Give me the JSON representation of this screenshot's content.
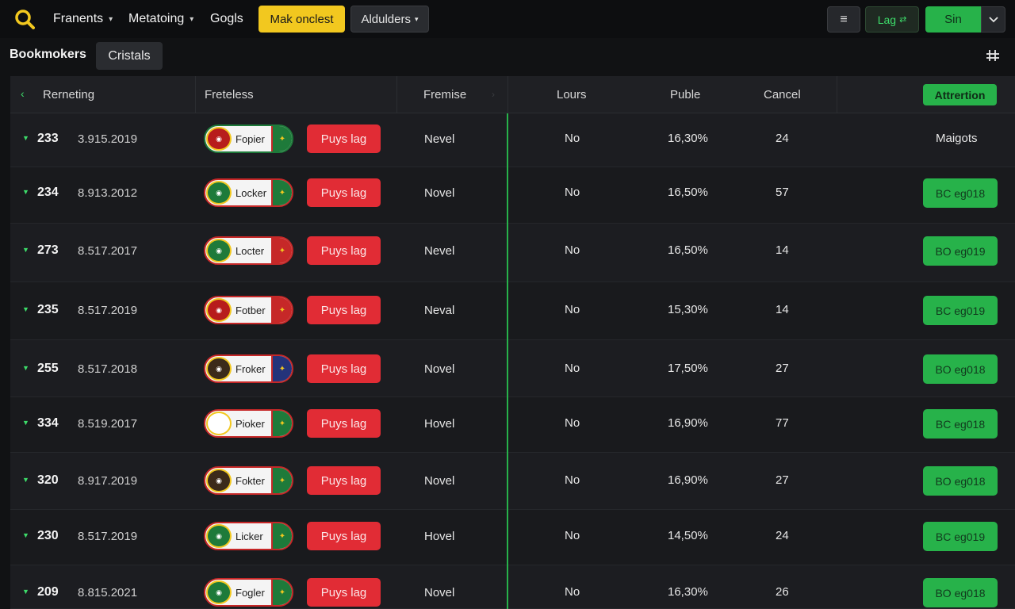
{
  "topbar": {
    "nav": [
      {
        "label": "Franents",
        "has_dropdown": true
      },
      {
        "label": "Metatoing",
        "has_dropdown": true
      },
      {
        "label": "Gogls",
        "has_dropdown": false
      }
    ],
    "yellow_button": "Mak onclest",
    "dark_button": "Aldulders",
    "menu_icon": "≡",
    "log_button": "Lag",
    "sign_button": "Sin"
  },
  "subbar": {
    "active_tab": "Bookmokers",
    "tab": "Cristals"
  },
  "table": {
    "headers": [
      "Rerneting",
      "Freteless",
      "Fremise",
      "Lours",
      "Puble",
      "Cancel"
    ],
    "attention_label": "Attrertion",
    "rows": [
      {
        "id": "233",
        "date": "3.915.2019",
        "team": "Fopier",
        "action": "Puys lag",
        "status": "Nevel",
        "lours": "No",
        "puble": "16,30%",
        "cancel": "24",
        "right": "Maigots",
        "right_is_button": false
      },
      {
        "id": "234",
        "date": "8.913.2012",
        "team": "Locker",
        "action": "Puys lag",
        "status": "Novel",
        "lours": "No",
        "puble": "16,50%",
        "cancel": "57",
        "right": "BC eg018",
        "right_is_button": true
      },
      {
        "id": "273",
        "date": "8.517.2017",
        "team": "Locter",
        "action": "Puys lag",
        "status": "Nevel",
        "lours": "No",
        "puble": "16,50%",
        "cancel": "14",
        "right": "BO eg019",
        "right_is_button": true
      },
      {
        "id": "235",
        "date": "8.517.2019",
        "team": "Fotber",
        "action": "Puys lag",
        "status": "Neval",
        "lours": "No",
        "puble": "15,30%",
        "cancel": "14",
        "right": "BC eg019",
        "right_is_button": true
      },
      {
        "id": "255",
        "date": "8.517.2018",
        "team": "Froker",
        "action": "Puys lag",
        "status": "Novel",
        "lours": "No",
        "puble": "17,50%",
        "cancel": "27",
        "right": "BO eg018",
        "right_is_button": true
      },
      {
        "id": "334",
        "date": "8.519.2017",
        "team": "Pioker",
        "action": "Puys lag",
        "status": "Hovel",
        "lours": "No",
        "puble": "16,90%",
        "cancel": "77",
        "right": "BC eg018",
        "right_is_button": true
      },
      {
        "id": "320",
        "date": "8.917.2019",
        "team": "Fokter",
        "action": "Puys lag",
        "status": "Novel",
        "lours": "No",
        "puble": "16,90%",
        "cancel": "27",
        "right": "BO eg018",
        "right_is_button": true
      },
      {
        "id": "230",
        "date": "8.517.2019",
        "team": "Licker",
        "action": "Puys lag",
        "status": "Hovel",
        "lours": "No",
        "puble": "14,50%",
        "cancel": "24",
        "right": "BC eg019",
        "right_is_button": true
      },
      {
        "id": "209",
        "date": "8.815.2021",
        "team": "Fogler",
        "action": "Puys lag",
        "status": "Novel",
        "lours": "No",
        "puble": "16,30%",
        "cancel": "26",
        "right": "BO eg018",
        "right_is_button": true
      }
    ]
  },
  "colors": {
    "accent_green": "#27b24a",
    "accent_yellow": "#f2c81f",
    "danger_red": "#e12c35",
    "background": "#111214"
  },
  "icons": {
    "logo": "search-icon",
    "menu": "hamburger-icon",
    "grid": "grid-icon",
    "row_expand": "chevron-down-icon",
    "team_crest": "crest-icon",
    "team_flag": "flag-icon"
  }
}
